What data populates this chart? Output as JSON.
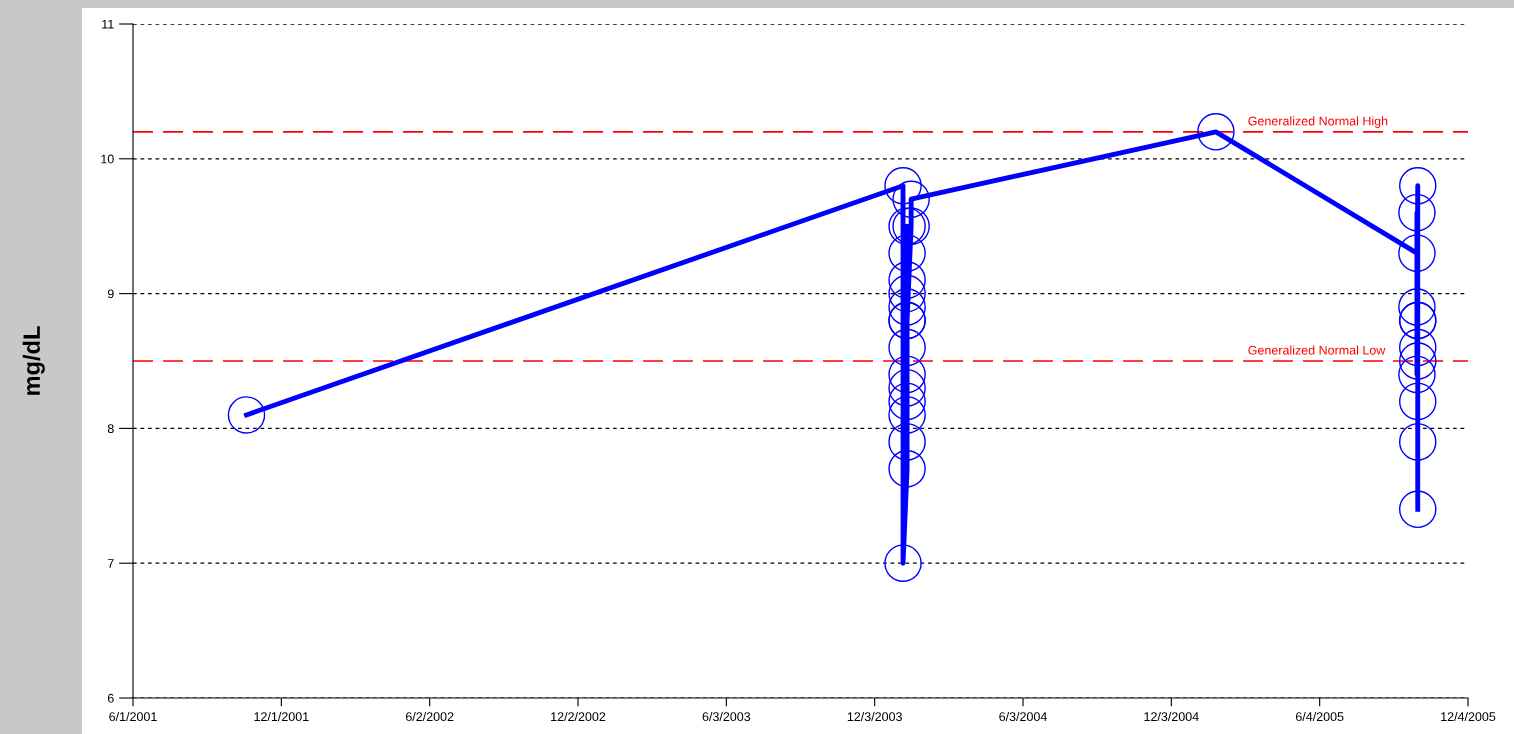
{
  "chart_data": {
    "type": "line",
    "ylabel": "mg/dL",
    "series": [
      {
        "color": "#0000ff",
        "x": [
          "2001-10-19",
          "2004-01-07",
          "2004-01-07",
          "2004-01-12",
          "2004-01-12",
          "2004-01-12",
          "2004-01-12",
          "2004-01-12",
          "2004-01-12",
          "2004-01-12",
          "2004-01-12",
          "2004-01-12",
          "2004-01-12",
          "2004-01-12",
          "2004-01-12",
          "2004-01-12",
          "2004-01-12",
          "2004-01-17",
          "2004-01-17",
          "2005-01-27",
          "2005-10-02",
          "2005-10-02",
          "2005-10-02",
          "2005-10-02",
          "2005-10-03",
          "2005-10-03",
          "2005-10-03",
          "2005-10-03",
          "2005-10-03",
          "2005-10-03",
          "2005-10-03",
          "2005-10-03"
        ],
        "values": [
          8.1,
          9.8,
          7.0,
          7.7,
          9.5,
          8.8,
          9.1,
          8.4,
          8.1,
          7.9,
          8.6,
          8.3,
          8.2,
          9.3,
          9.0,
          8.9,
          8.8,
          9.5,
          9.7,
          10.2,
          9.3,
          8.9,
          9.6,
          8.4,
          9.8,
          8.2,
          8.8,
          7.9,
          8.6,
          8.5,
          8.8,
          7.4
        ]
      }
    ],
    "xlim": [
      "2001-06-01",
      "2005-12-04"
    ],
    "xticks": [
      {
        "value": "2001-06-01",
        "label": "6/1/2001"
      },
      {
        "value": "2001-12-01",
        "label": "12/1/2001"
      },
      {
        "value": "2002-06-02",
        "label": "6/2/2002"
      },
      {
        "value": "2002-12-02",
        "label": "12/2/2002"
      },
      {
        "value": "2003-06-03",
        "label": "6/3/2003"
      },
      {
        "value": "2003-12-03",
        "label": "12/3/2003"
      },
      {
        "value": "2004-06-03",
        "label": "6/3/2004"
      },
      {
        "value": "2004-12-03",
        "label": "12/3/2004"
      },
      {
        "value": "2005-06-04",
        "label": "6/4/2005"
      },
      {
        "value": "2005-12-04",
        "label": "12/4/2005"
      }
    ],
    "ylim": [
      6,
      11
    ],
    "yticks": [
      6,
      7,
      8,
      9,
      10,
      11
    ],
    "ref_lines": [
      {
        "axis": "y",
        "value": 10.2,
        "label": "Generalized Normal High",
        "color": "#ff0000",
        "line_style": "dashed"
      },
      {
        "axis": "y",
        "value": 8.5,
        "label": "Generalized Normal Low",
        "color": "#ff0000",
        "line_style": "dashed"
      }
    ],
    "grid": "y",
    "marker": "circle",
    "line_style": "solid",
    "legend": false
  }
}
